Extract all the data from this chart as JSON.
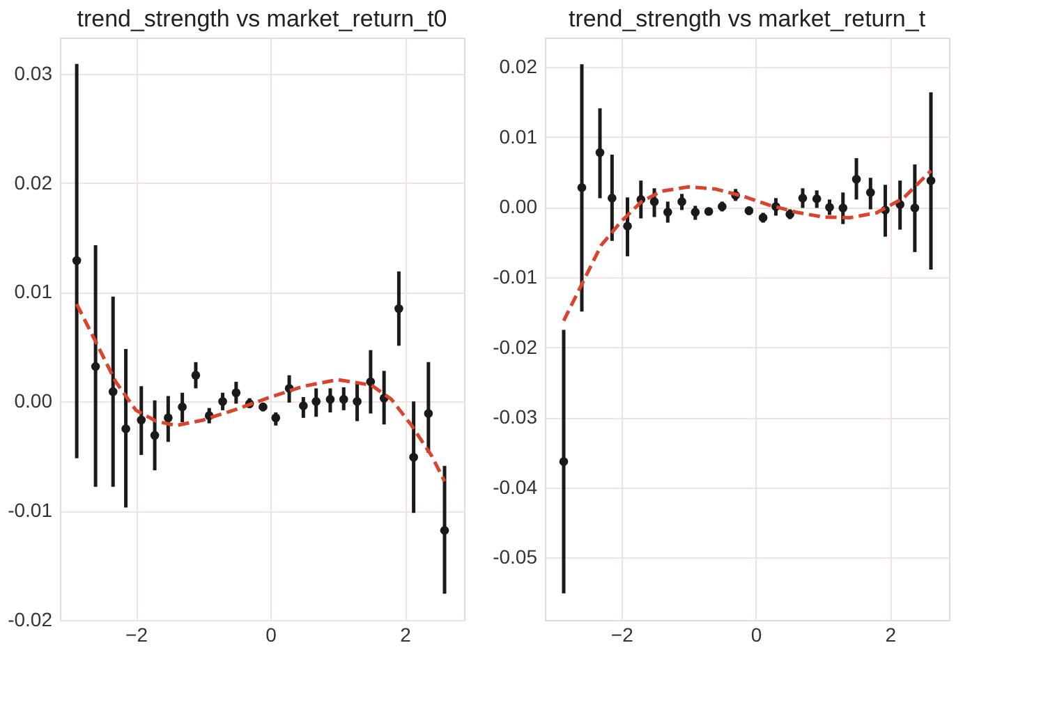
{
  "chart_data": [
    {
      "type": "scatter",
      "title": "trend_strength vs market_return_t0",
      "xlim": [
        -3.13,
        2.88
      ],
      "ylim": [
        -0.02,
        0.0333
      ],
      "xticks": [
        -2,
        0,
        2
      ],
      "yticks": [
        {
          "value": -0.02,
          "label": "-0.02"
        },
        {
          "value": -0.01,
          "label": "-0.01"
        },
        {
          "value": 0,
          "label": "0.00"
        },
        {
          "value": 0.01,
          "label": "0.01"
        },
        {
          "value": 0.02,
          "label": "0.02"
        },
        {
          "value": 0.03,
          "label": "0.03"
        }
      ],
      "grid": true,
      "series": [
        {
          "type": "scatter",
          "marker": "circle",
          "color": "#1a1a1a",
          "x": [
            -2.88,
            -2.6,
            -2.34,
            -2.15,
            -1.92,
            -1.72,
            -1.52,
            -1.31,
            -1.11,
            -0.91,
            -0.71,
            -0.51,
            -0.31,
            -0.11,
            0.08,
            0.28,
            0.49,
            0.68,
            0.89,
            1.09,
            1.29,
            1.49,
            1.69,
            1.91,
            2.13,
            2.35,
            2.59
          ],
          "values": [
            0.0129,
            0.0032,
            0.0009,
            -0.0025,
            -0.0017,
            -0.0031,
            -0.0015,
            -0.0005,
            0.0024,
            -0.0013,
            0.0,
            0.0008,
            -0.0002,
            -0.0005,
            -0.0015,
            0.0012,
            -0.0004,
            0.0,
            0.0002,
            0.0002,
            0.0,
            0.0018,
            0.0003,
            0.0085,
            -0.0051,
            -0.0011,
            -0.0118
          ],
          "errors": [
            [
              -0.0052,
              0.0309
            ],
            [
              -0.0078,
              0.0143
            ],
            [
              -0.0078,
              0.0096
            ],
            [
              -0.0097,
              0.0048
            ],
            [
              -0.0049,
              0.0014
            ],
            [
              -0.0063,
              0.0001
            ],
            [
              -0.0037,
              0.0005
            ],
            [
              -0.0019,
              0.0008
            ],
            [
              0.0012,
              0.0036
            ],
            [
              -0.002,
              -0.0006
            ],
            [
              -0.0008,
              0.0008
            ],
            [
              -0.0002,
              0.0018
            ],
            [
              -0.0006,
              0.0003
            ],
            [
              -0.0009,
              -0.0002
            ],
            [
              -0.0022,
              -0.001
            ],
            [
              -0.0001,
              0.0024
            ],
            [
              -0.0015,
              0.0004
            ],
            [
              -0.0014,
              0.0012
            ],
            [
              -0.001,
              0.0012
            ],
            [
              -0.0008,
              0.0013
            ],
            [
              -0.0018,
              0.0016
            ],
            [
              -0.0011,
              0.0047
            ],
            [
              -0.0021,
              0.0028
            ],
            [
              0.0051,
              0.0119
            ],
            [
              -0.0102,
              0.0
            ],
            [
              -0.0047,
              0.0036
            ],
            [
              -0.0176,
              -0.0059
            ]
          ]
        },
        {
          "type": "line",
          "marker": "none",
          "line_style": "dashed",
          "color": "#d9442e",
          "x": [
            -2.88,
            -2.6,
            -2.3,
            -2.0,
            -1.7,
            -1.4,
            -1.0,
            -0.5,
            0.0,
            0.5,
            1.0,
            1.5,
            1.8,
            2.1,
            2.4,
            2.59
          ],
          "values": [
            0.0089,
            0.0055,
            0.0018,
            -0.0008,
            -0.0018,
            -0.0022,
            -0.0017,
            -0.0007,
            0.0004,
            0.0014,
            0.002,
            0.0015,
            0.0002,
            -0.0022,
            -0.005,
            -0.0073
          ]
        }
      ]
    },
    {
      "type": "scatter",
      "title": "trend_strength vs market_return_t",
      "xlim": [
        -3.14,
        2.88
      ],
      "ylim": [
        -0.0589,
        0.0242
      ],
      "xticks": [
        -2,
        0,
        2
      ],
      "yticks": [
        {
          "value": -0.05,
          "label": "-0.05"
        },
        {
          "value": -0.04,
          "label": "-0.04"
        },
        {
          "value": -0.03,
          "label": "-0.03"
        },
        {
          "value": -0.02,
          "label": "-0.02"
        },
        {
          "value": -0.01,
          "label": "-0.01"
        },
        {
          "value": 0,
          "label": "0.00"
        },
        {
          "value": 0.01,
          "label": "0.01"
        },
        {
          "value": 0.02,
          "label": "0.02"
        }
      ],
      "grid": true,
      "series": [
        {
          "type": "scatter",
          "marker": "circle",
          "color": "#1a1a1a",
          "x": [
            -2.86,
            -2.59,
            -2.32,
            -2.14,
            -1.91,
            -1.71,
            -1.51,
            -1.31,
            -1.1,
            -0.9,
            -0.7,
            -0.5,
            -0.3,
            -0.1,
            0.11,
            0.3,
            0.51,
            0.7,
            0.91,
            1.1,
            1.3,
            1.5,
            1.71,
            1.93,
            2.15,
            2.37,
            2.61
          ],
          "values": [
            -0.0363,
            0.0028,
            0.0078,
            0.0013,
            -0.0027,
            0.0011,
            0.0008,
            -0.0007,
            0.0008,
            -0.0007,
            -0.0006,
            0.0001,
            0.0017,
            -0.0005,
            -0.0015,
            0.0001,
            -0.001,
            0.0013,
            0.0012,
            0.0,
            -0.0001,
            0.004,
            0.0021,
            -0.0004,
            0.0004,
            -0.0001,
            0.0038
          ],
          "errors": [
            [
              -0.0551,
              -0.0175
            ],
            [
              -0.0149,
              0.0204
            ],
            [
              0.0013,
              0.0141
            ],
            [
              -0.0048,
              0.0075
            ],
            [
              -0.007,
              0.0014
            ],
            [
              -0.0016,
              0.0038
            ],
            [
              -0.0014,
              0.0027
            ],
            [
              -0.0022,
              0.0008
            ],
            [
              -0.0004,
              0.0019
            ],
            [
              -0.0018,
              0.0002
            ],
            [
              -0.0011,
              -0.0001
            ],
            [
              -0.0006,
              0.0008
            ],
            [
              0.0009,
              0.0026
            ],
            [
              -0.0011,
              0.0001
            ],
            [
              -0.0022,
              -0.0008
            ],
            [
              -0.0012,
              0.0013
            ],
            [
              -0.0017,
              -0.0003
            ],
            [
              -0.0001,
              0.0027
            ],
            [
              -0.0001,
              0.0024
            ],
            [
              -0.0011,
              0.0011
            ],
            [
              -0.0024,
              0.0021
            ],
            [
              0.0011,
              0.007
            ],
            [
              -0.0003,
              0.0042
            ],
            [
              -0.0042,
              0.0032
            ],
            [
              -0.0032,
              0.0038
            ],
            [
              -0.0064,
              0.0061
            ],
            [
              -0.0089,
              0.0164
            ]
          ]
        },
        {
          "type": "line",
          "marker": "none",
          "line_style": "dashed",
          "color": "#d9442e",
          "x": [
            -2.86,
            -2.59,
            -2.3,
            -2.0,
            -1.7,
            -1.4,
            -1.0,
            -0.6,
            -0.2,
            0.2,
            0.6,
            1.0,
            1.4,
            1.8,
            2.2,
            2.61
          ],
          "values": [
            -0.0162,
            -0.011,
            -0.0054,
            -0.002,
            0.0008,
            0.0023,
            0.0029,
            0.0026,
            0.0016,
            0.0003,
            -0.0007,
            -0.0014,
            -0.0015,
            -0.0008,
            0.0013,
            0.0052
          ]
        }
      ]
    }
  ]
}
